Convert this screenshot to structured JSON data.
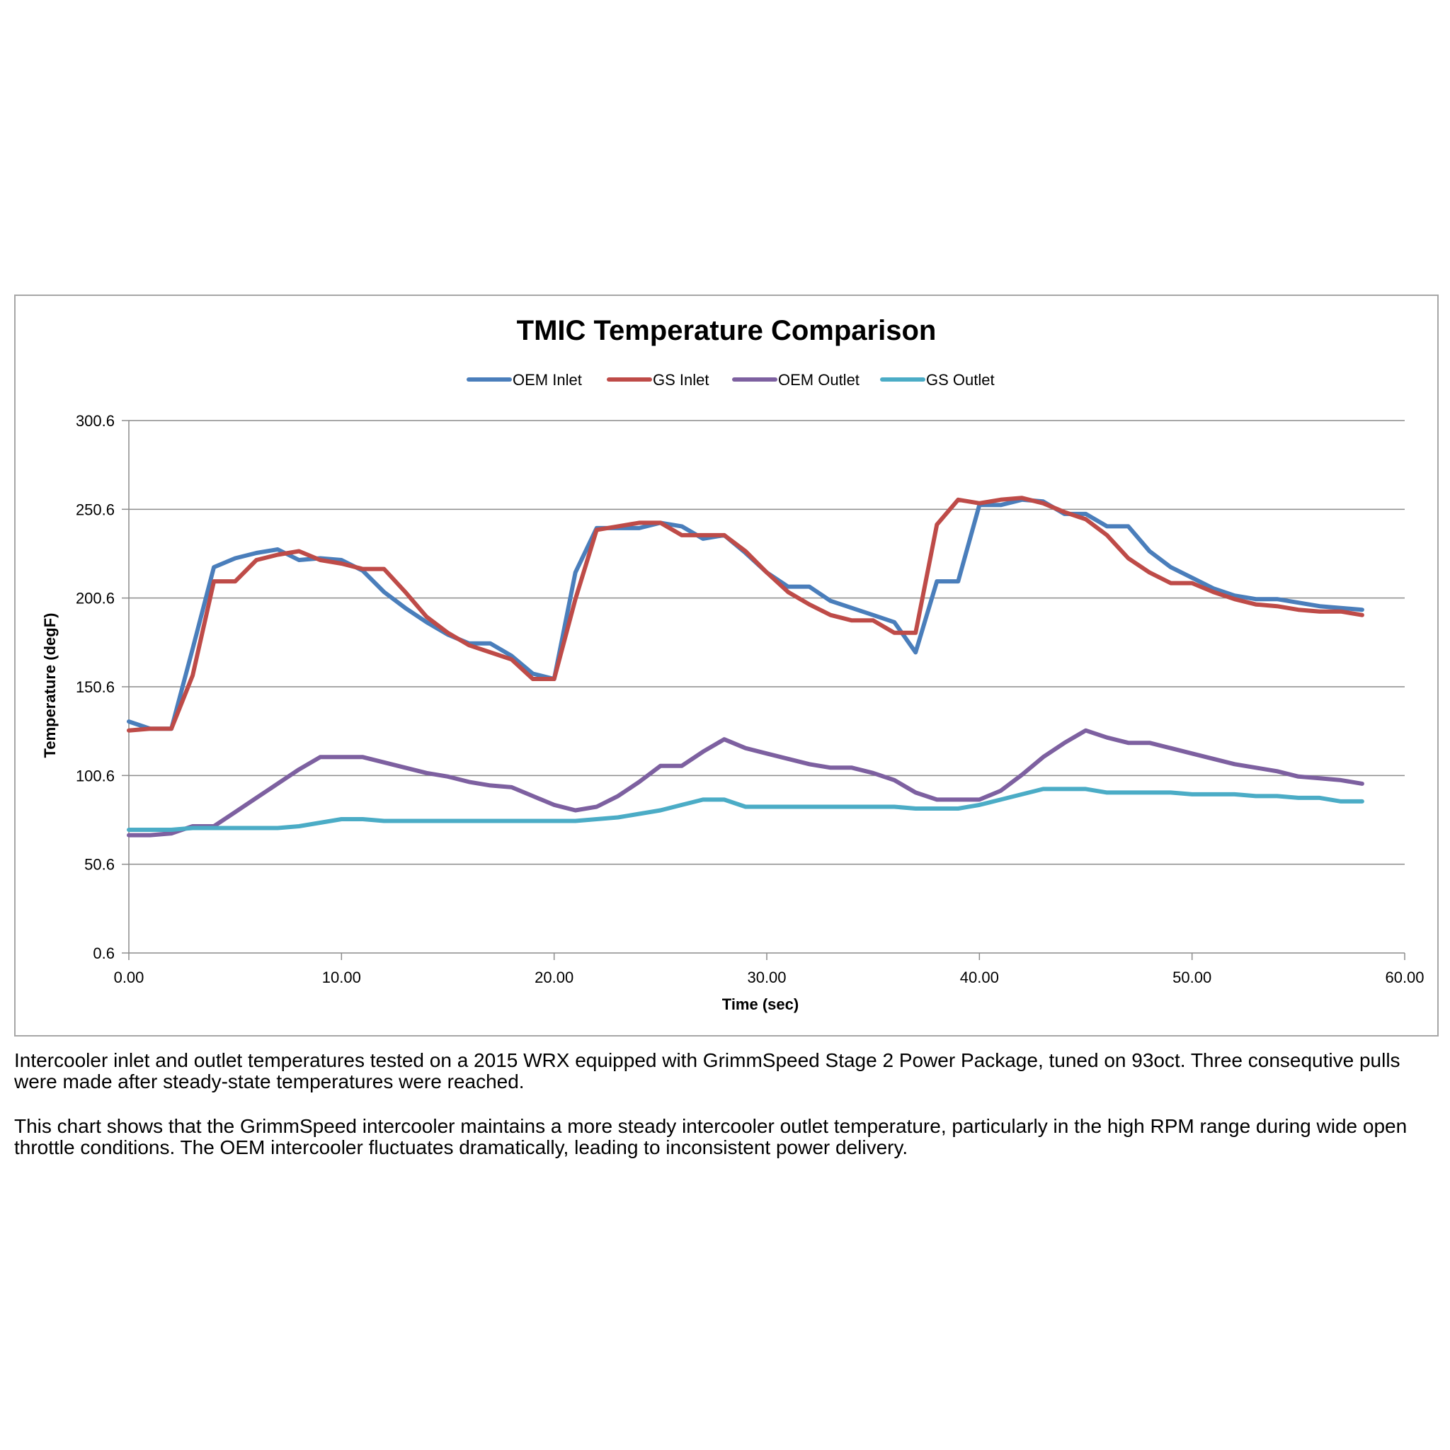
{
  "chart_data": {
    "type": "line",
    "title": "TMIC Temperature Comparison",
    "xlabel": "Time (sec)",
    "ylabel": "Temperature (degF)",
    "xlim": [
      0,
      60
    ],
    "ylim": [
      0.6,
      300.6
    ],
    "xticks": [
      "0.00",
      "10.00",
      "20.00",
      "30.00",
      "40.00",
      "50.00",
      "60.00"
    ],
    "yticks": [
      "0.6",
      "50.6",
      "100.6",
      "150.6",
      "200.6",
      "250.6",
      "300.6"
    ],
    "grid": "horizontal",
    "legend_position": "top",
    "x": [
      0,
      1,
      2,
      3,
      4,
      5,
      6,
      7,
      8,
      9,
      10,
      11,
      12,
      13,
      14,
      15,
      16,
      17,
      18,
      19,
      20,
      21,
      22,
      23,
      24,
      25,
      26,
      27,
      28,
      29,
      30,
      31,
      32,
      33,
      34,
      35,
      36,
      37,
      38,
      39,
      40,
      41,
      42,
      43,
      44,
      45,
      46,
      47,
      48,
      49,
      50,
      51,
      52,
      53,
      54,
      55,
      56,
      57,
      58
    ],
    "series": [
      {
        "name": "OEM Inlet",
        "color": "#4a7ebb",
        "values": [
          131,
          127,
          127,
          172,
          218,
          223,
          226,
          228,
          222,
          223,
          222,
          216,
          204,
          195,
          187,
          180,
          175,
          175,
          168,
          158,
          155,
          215,
          240,
          240,
          240,
          243,
          241,
          234,
          236,
          226,
          215,
          207,
          207,
          199,
          195,
          191,
          187,
          170,
          210,
          210,
          253,
          253,
          256,
          255,
          248,
          248,
          241,
          241,
          227,
          218,
          212,
          206,
          202,
          200,
          200,
          198,
          196,
          195,
          194
        ]
      },
      {
        "name": "GS Inlet",
        "color": "#be4b48",
        "values": [
          126,
          127,
          127,
          157,
          210,
          210,
          222,
          225,
          227,
          222,
          220,
          217,
          217,
          204,
          190,
          181,
          174,
          170,
          166,
          155,
          155,
          200,
          239,
          241,
          243,
          243,
          236,
          236,
          236,
          227,
          215,
          204,
          197,
          191,
          188,
          188,
          181,
          181,
          242,
          256,
          254,
          256,
          257,
          254,
          249,
          245,
          236,
          223,
          215,
          209,
          209,
          204,
          200,
          197,
          196,
          194,
          193,
          193,
          191
        ]
      },
      {
        "name": "OEM Outlet",
        "color": "#7d60a0",
        "values": [
          67,
          67,
          68,
          72,
          72,
          80,
          88,
          96,
          104,
          111,
          111,
          111,
          108,
          105,
          102,
          100,
          97,
          95,
          94,
          89,
          84,
          81,
          83,
          89,
          97,
          106,
          106,
          114,
          121,
          116,
          113,
          110,
          107,
          105,
          105,
          102,
          98,
          91,
          87,
          87,
          87,
          92,
          101,
          111,
          119,
          126,
          122,
          119,
          119,
          116,
          113,
          110,
          107,
          105,
          103,
          100,
          99,
          98,
          96
        ]
      },
      {
        "name": "GS Outlet",
        "color": "#4bacc6",
        "values": [
          70,
          70,
          70,
          71,
          71,
          71,
          71,
          71,
          72,
          74,
          76,
          76,
          75,
          75,
          75,
          75,
          75,
          75,
          75,
          75,
          75,
          75,
          76,
          77,
          79,
          81,
          84,
          87,
          87,
          83,
          83,
          83,
          83,
          83,
          83,
          83,
          83,
          82,
          82,
          82,
          84,
          87,
          90,
          93,
          93,
          93,
          91,
          91,
          91,
          91,
          90,
          90,
          90,
          89,
          89,
          88,
          88,
          86,
          86
        ]
      }
    ]
  },
  "captions": {
    "line1": "Intercooler inlet and outlet temperatures tested on a 2015 WRX equipped with GrimmSpeed Stage 2 Power Package, tuned on 93oct. Three consequtive pulls were made after steady-state temperatures were reached.",
    "line2": "This chart shows that the GrimmSpeed intercooler maintains a more steady intercooler outlet temperature, particularly in the high RPM range during wide open throttle conditions. The OEM intercooler fluctuates dramatically, leading to inconsistent power delivery."
  }
}
